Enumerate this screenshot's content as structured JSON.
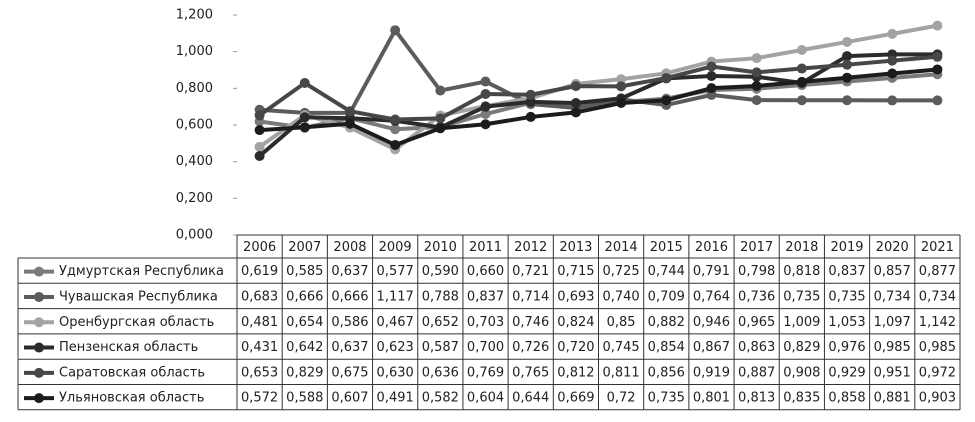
{
  "chart_data": {
    "type": "line",
    "categories": [
      "2006",
      "2007",
      "2008",
      "2009",
      "2010",
      "2011",
      "2012",
      "2013",
      "2014",
      "2015",
      "2016",
      "2017",
      "2018",
      "2019",
      "2020",
      "2021"
    ],
    "ylim": [
      0,
      1.2
    ],
    "yticks": [
      {
        "value": 0,
        "label": "0,000"
      },
      {
        "value": 0.2,
        "label": "0,200"
      },
      {
        "value": 0.4,
        "label": "0,400"
      },
      {
        "value": 0.6,
        "label": "0,600"
      },
      {
        "value": 0.8,
        "label": "0,800"
      },
      {
        "value": 1.0,
        "label": "1,000"
      },
      {
        "value": 1.2,
        "label": "1,200"
      }
    ],
    "grid": false,
    "series": [
      {
        "name": "Удмуртская Республика",
        "color": "#7a7a7a",
        "values": [
          0.619,
          0.585,
          0.637,
          0.577,
          0.59,
          0.66,
          0.721,
          0.715,
          0.725,
          0.744,
          0.791,
          0.798,
          0.818,
          0.837,
          0.857,
          0.877
        ],
        "value_labels": [
          "0,619",
          "0,585",
          "0,637",
          "0,577",
          "0,590",
          "0,660",
          "0,721",
          "0,715",
          "0,725",
          "0,744",
          "0,791",
          "0,798",
          "0,818",
          "0,837",
          "0,857",
          "0,877"
        ]
      },
      {
        "name": "Чувашская Республика",
        "color": "#5c5c5c",
        "values": [
          0.683,
          0.666,
          0.666,
          1.117,
          0.788,
          0.837,
          0.714,
          0.693,
          0.74,
          0.709,
          0.764,
          0.736,
          0.735,
          0.735,
          0.734,
          0.734
        ],
        "value_labels": [
          "0,683",
          "0,666",
          "0,666",
          "1,117",
          "0,788",
          "0,837",
          "0,714",
          "0,693",
          "0,740",
          "0,709",
          "0,764",
          "0,736",
          "0,735",
          "0,735",
          "0,734",
          "0,734"
        ]
      },
      {
        "name": "Оренбургская область",
        "color": "#a3a3a3",
        "values": [
          0.481,
          0.654,
          0.586,
          0.467,
          0.652,
          0.703,
          0.746,
          0.824,
          0.85,
          0.882,
          0.946,
          0.965,
          1.009,
          1.053,
          1.097,
          1.142
        ],
        "value_labels": [
          "0,481",
          "0,654",
          "0,586",
          "0,467",
          "0,652",
          "0,703",
          "0,746",
          "0,824",
          "0,85",
          "0,882",
          "0,946",
          "0,965",
          "1,009",
          "1,053",
          "1,097",
          "1,142"
        ]
      },
      {
        "name": "Пензенская область",
        "color": "#2b2b2b",
        "values": [
          0.431,
          0.642,
          0.637,
          0.623,
          0.587,
          0.7,
          0.726,
          0.72,
          0.745,
          0.854,
          0.867,
          0.863,
          0.829,
          0.976,
          0.985,
          0.985
        ],
        "value_labels": [
          "0,431",
          "0,642",
          "0,637",
          "0,623",
          "0,587",
          "0,700",
          "0,726",
          "0,720",
          "0,745",
          "0,854",
          "0,867",
          "0,863",
          "0,829",
          "0,976",
          "0,985",
          "0,985"
        ]
      },
      {
        "name": "Саратовская область",
        "color": "#474747",
        "values": [
          0.653,
          0.829,
          0.675,
          0.63,
          0.636,
          0.769,
          0.765,
          0.812,
          0.811,
          0.856,
          0.919,
          0.887,
          0.908,
          0.929,
          0.951,
          0.972
        ],
        "value_labels": [
          "0,653",
          "0,829",
          "0,675",
          "0,630",
          "0,636",
          "0,769",
          "0,765",
          "0,812",
          "0,811",
          "0,856",
          "0,919",
          "0,887",
          "0,908",
          "0,929",
          "0,951",
          "0,972"
        ]
      },
      {
        "name": "Ульяновская область",
        "color": "#1c1c1c",
        "values": [
          0.572,
          0.588,
          0.607,
          0.491,
          0.582,
          0.604,
          0.644,
          0.669,
          0.72,
          0.735,
          0.801,
          0.813,
          0.835,
          0.858,
          0.881,
          0.903
        ],
        "value_labels": [
          "0,572",
          "0,588",
          "0,607",
          "0,491",
          "0,582",
          "0,604",
          "0,644",
          "0,669",
          "0,72",
          "0,735",
          "0,801",
          "0,813",
          "0,835",
          "0,858",
          "0,881",
          "0,903"
        ]
      }
    ]
  }
}
